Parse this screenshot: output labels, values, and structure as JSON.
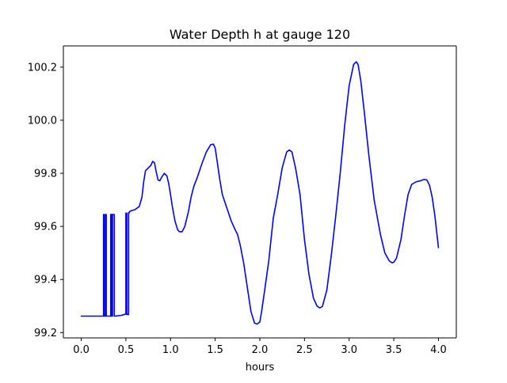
{
  "chart_data": {
    "type": "line",
    "title": "Water Depth h at gauge 120",
    "xlabel": "hours",
    "ylabel": "",
    "xlim": [
      -0.2,
      4.2
    ],
    "ylim": [
      99.18,
      100.28
    ],
    "xticks": [
      0.0,
      0.5,
      1.0,
      1.5,
      2.0,
      2.5,
      3.0,
      3.5,
      4.0
    ],
    "xtick_labels": [
      "0.0",
      "0.5",
      "1.0",
      "1.5",
      "2.0",
      "2.5",
      "3.0",
      "3.5",
      "4.0"
    ],
    "yticks": [
      99.2,
      99.4,
      99.6,
      99.8,
      100.0,
      100.2
    ],
    "ytick_labels": [
      "99.2",
      "99.4",
      "99.6",
      "99.8",
      "100.0",
      "100.2"
    ],
    "grid": false,
    "legend": "none",
    "series": [
      {
        "color": "#0000ff",
        "x": [
          0.0,
          0.1,
          0.2,
          0.24,
          0.25,
          0.25,
          0.255,
          0.255,
          0.27,
          0.27,
          0.28,
          0.28,
          0.33,
          0.33,
          0.34,
          0.34,
          0.35,
          0.35,
          0.37,
          0.37,
          0.38,
          0.45,
          0.5,
          0.5,
          0.51,
          0.51,
          0.53,
          0.53,
          0.54,
          0.54,
          0.55,
          0.6,
          0.65,
          0.68,
          0.7,
          0.72,
          0.75,
          0.78,
          0.8,
          0.82,
          0.84,
          0.86,
          0.88,
          0.9,
          0.93,
          0.96,
          0.98,
          1.0,
          1.02,
          1.05,
          1.08,
          1.1,
          1.13,
          1.16,
          1.2,
          1.23,
          1.26,
          1.3,
          1.35,
          1.4,
          1.45,
          1.48,
          1.5,
          1.52,
          1.55,
          1.58,
          1.62,
          1.68,
          1.72,
          1.75,
          1.78,
          1.82,
          1.86,
          1.9,
          1.94,
          1.97,
          2.0,
          2.02,
          2.05,
          2.1,
          2.15,
          2.2,
          2.25,
          2.3,
          2.33,
          2.36,
          2.4,
          2.45,
          2.5,
          2.55,
          2.6,
          2.64,
          2.67,
          2.7,
          2.75,
          2.8,
          2.85,
          2.9,
          2.95,
          3.0,
          3.05,
          3.08,
          3.1,
          3.13,
          3.17,
          3.22,
          3.28,
          3.35,
          3.4,
          3.45,
          3.48,
          3.5,
          3.53,
          3.58,
          3.62,
          3.66,
          3.7,
          3.75,
          3.8,
          3.84,
          3.87,
          3.9,
          3.93,
          3.96,
          4.0
        ],
        "y": [
          99.262,
          99.262,
          99.262,
          99.262,
          99.262,
          99.645,
          99.645,
          99.262,
          99.262,
          99.645,
          99.645,
          99.262,
          99.262,
          99.645,
          99.645,
          99.262,
          99.262,
          99.645,
          99.645,
          99.262,
          99.262,
          99.265,
          99.27,
          99.65,
          99.65,
          99.268,
          99.268,
          99.652,
          99.652,
          99.655,
          99.658,
          99.663,
          99.675,
          99.71,
          99.77,
          99.81,
          99.82,
          99.83,
          99.845,
          99.84,
          99.805,
          99.775,
          99.772,
          99.785,
          99.8,
          99.79,
          99.76,
          99.72,
          99.675,
          99.62,
          99.587,
          99.58,
          99.58,
          99.6,
          99.655,
          99.71,
          99.75,
          99.785,
          99.835,
          99.88,
          99.908,
          99.91,
          99.895,
          99.85,
          99.78,
          99.72,
          99.68,
          99.62,
          99.59,
          99.57,
          99.53,
          99.46,
          99.37,
          99.28,
          99.236,
          99.232,
          99.24,
          99.28,
          99.35,
          99.47,
          99.63,
          99.72,
          99.82,
          99.88,
          99.888,
          99.88,
          99.82,
          99.72,
          99.55,
          99.42,
          99.33,
          99.3,
          99.293,
          99.298,
          99.36,
          99.49,
          99.64,
          99.8,
          99.98,
          100.13,
          100.21,
          100.22,
          100.21,
          100.15,
          100.03,
          99.87,
          99.7,
          99.57,
          99.5,
          99.47,
          99.463,
          99.465,
          99.48,
          99.55,
          99.64,
          99.72,
          99.758,
          99.768,
          99.772,
          99.777,
          99.775,
          99.755,
          99.71,
          99.64,
          99.52
        ]
      }
    ]
  }
}
